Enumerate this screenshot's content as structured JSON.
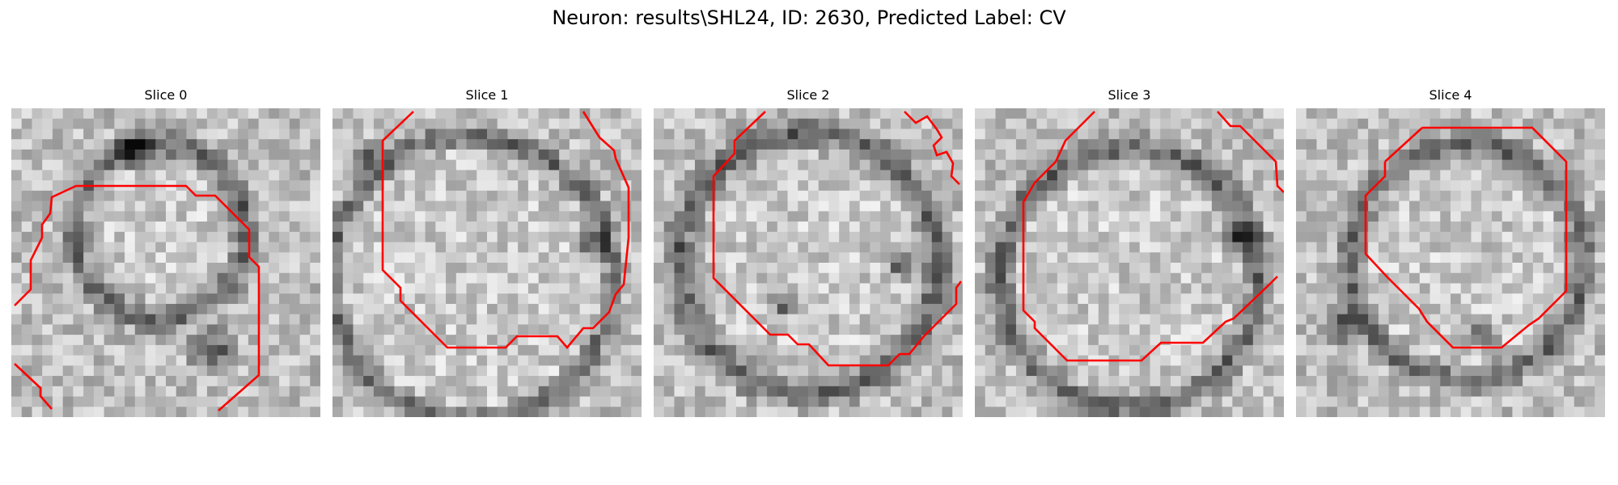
{
  "figure": {
    "title": "Neuron: results\\SHL24, ID: 2630, Predicted Label: CV"
  },
  "slices": [
    {
      "title": "Slice 0"
    },
    {
      "title": "Slice 1"
    },
    {
      "title": "Slice 2"
    },
    {
      "title": "Slice 3"
    },
    {
      "title": "Slice 4"
    }
  ],
  "colors": {
    "contour": "#ff0000"
  }
}
